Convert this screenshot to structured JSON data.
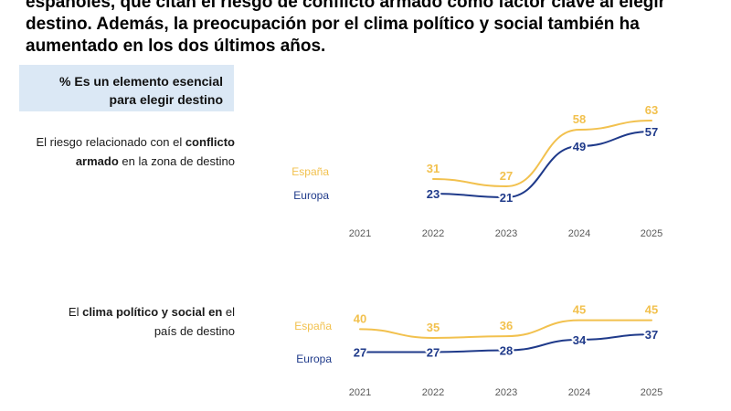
{
  "headline": {
    "line1": "españoles, que citan el riesgo de conflicto armado como factor clave al elegir",
    "line2": "destino. Además, la preocupación por el clima político y social también ha",
    "line3": "aumentado en los dos últimos años."
  },
  "legend": {
    "line1": "% Es un elemento esencial",
    "line2": "para elegir destino"
  },
  "colors": {
    "espana": "#f2c14e",
    "europa": "#1f3a8a"
  },
  "chart_data": [
    {
      "type": "line",
      "label_parts": [
        {
          "text": "El riesgo relacionado con el ",
          "bold": false
        },
        {
          "text": "conflicto",
          "bold": true
        },
        {
          "text": "armado",
          "bold": true,
          "break_before": true
        },
        {
          "text": " en la zona de destino",
          "bold": false
        }
      ],
      "x": [
        "2021",
        "2022",
        "2023",
        "2024",
        "2025"
      ],
      "ylim": [
        15,
        70
      ],
      "series": [
        {
          "name": "España",
          "key": "espana",
          "values": [
            null,
            31,
            27,
            58,
            63
          ]
        },
        {
          "name": "Europa",
          "key": "europa",
          "values": [
            null,
            23,
            21,
            49,
            57
          ]
        }
      ]
    },
    {
      "type": "line",
      "label_parts": [
        {
          "text": "El ",
          "bold": false
        },
        {
          "text": "clima político y social en",
          "bold": true
        },
        {
          "text": " el",
          "bold": false
        },
        {
          "text": "país de destino",
          "bold": false,
          "break_before": true
        }
      ],
      "x": [
        "2021",
        "2022",
        "2023",
        "2024",
        "2025"
      ],
      "ylim": [
        20,
        50
      ],
      "series": [
        {
          "name": "España",
          "key": "espana",
          "values": [
            40,
            35,
            36,
            45,
            45
          ]
        },
        {
          "name": "Europa",
          "key": "europa",
          "values": [
            27,
            27,
            28,
            34,
            37
          ]
        }
      ]
    }
  ]
}
